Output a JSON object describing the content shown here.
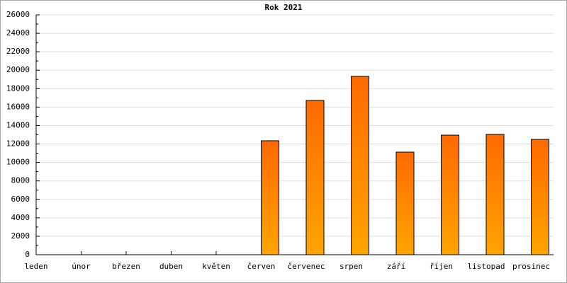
{
  "chart_data": {
    "type": "bar",
    "title": "Rok 2021",
    "categories": [
      "leden",
      "únor",
      "březen",
      "duben",
      "květen",
      "červen",
      "červenec",
      "srpen",
      "září",
      "říjen",
      "listopad",
      "prosinec"
    ],
    "values": [
      0,
      0,
      0,
      0,
      0,
      12350,
      16720,
      19330,
      11120,
      12960,
      13040,
      12500
    ],
    "color": "#ff6a00",
    "ylim": [
      0,
      26000
    ],
    "yticks": [
      0,
      2000,
      4000,
      6000,
      8000,
      10000,
      12000,
      14000,
      16000,
      18000,
      20000,
      22000,
      24000,
      26000
    ],
    "grid": true
  }
}
